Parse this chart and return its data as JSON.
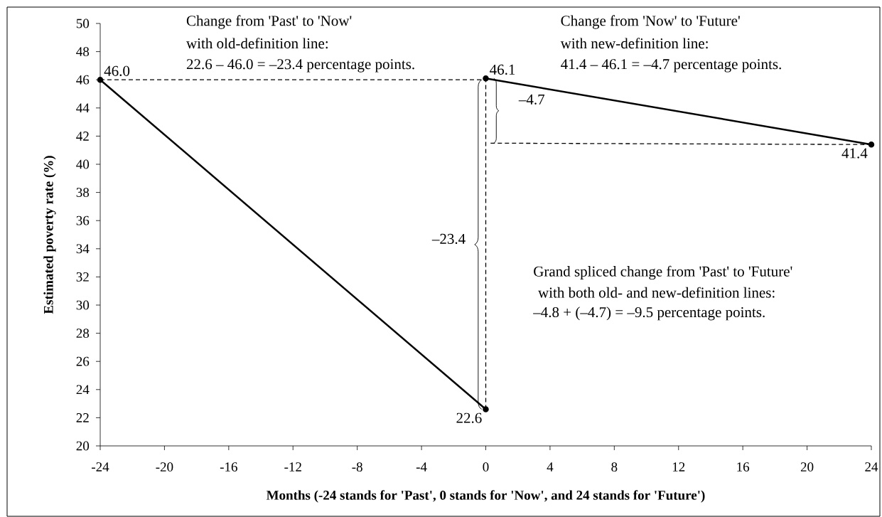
{
  "chart_data": {
    "type": "line",
    "xlabel": "Months (-24 stands for 'Past', 0 stands for 'Now', and 24 stands for 'Future')",
    "ylabel": "Estimated poverty rate (%)",
    "xlim": [
      -24,
      24
    ],
    "xticks": [
      -24,
      -20,
      -16,
      -12,
      -8,
      -4,
      0,
      4,
      8,
      12,
      16,
      20,
      24
    ],
    "ylim": [
      20,
      50
    ],
    "yticks": [
      20,
      22,
      24,
      26,
      28,
      30,
      32,
      34,
      36,
      38,
      40,
      42,
      44,
      46,
      48,
      50
    ],
    "series": [
      {
        "x": [
          -24,
          0
        ],
        "values": [
          46.0,
          22.6
        ],
        "color": "#000000",
        "marker": "circle",
        "line_style": "solid"
      },
      {
        "x": [
          0,
          24
        ],
        "values": [
          46.1,
          41.4
        ],
        "color": "#000000",
        "marker": "circle",
        "line_style": "solid"
      },
      {
        "x": [
          -24,
          0
        ],
        "values": [
          46.0,
          46.0
        ],
        "color": "#000000",
        "marker": "none",
        "line_style": "dashed"
      },
      {
        "x": [
          0,
          0
        ],
        "values": [
          22.6,
          46.1
        ],
        "color": "#000000",
        "marker": "none",
        "line_style": "dashed"
      },
      {
        "x": [
          0.3,
          24
        ],
        "values": [
          41.5,
          41.4
        ],
        "color": "#000000",
        "marker": "none",
        "line_style": "dashed"
      }
    ],
    "annotations": [
      "Change from 'Past' to 'Now'",
      "with old-definition line:",
      "22.6 – 46.0 = –23.4 percentage points.",
      "Change from 'Now' to 'Future'",
      "with new-definition line:",
      "41.4 – 46.1 = –4.7 percentage points.",
      "Grand spliced change from 'Past' to 'Future'",
      "with both old- and new-definition lines:",
      "–4.8 + (–4.7) = –9.5 percentage points.",
      "–23.4",
      "–4.7",
      {
        "text": "46.0",
        "x": -24,
        "y": 46.0
      },
      {
        "text": "22.6",
        "x": 0,
        "y": 22.6
      },
      {
        "text": "46.1",
        "x": 0,
        "y": 46.1
      },
      {
        "text": "41.4",
        "x": 24,
        "y": 41.4
      }
    ]
  }
}
